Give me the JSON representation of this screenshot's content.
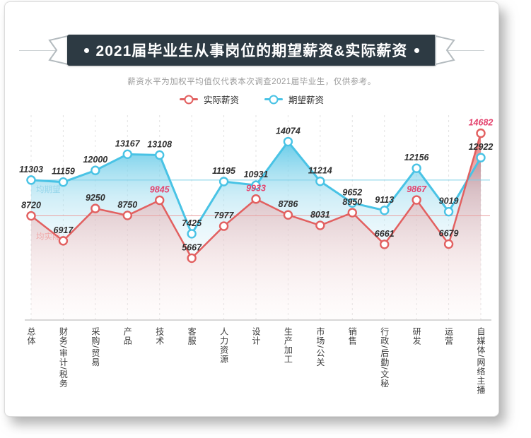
{
  "banner": {
    "title": "2021届毕业生从事岗位的期望薪资&实际薪资"
  },
  "subtitle": "薪资水平为加权平均值仅代表本次调查2021届毕业生，仅供参考。",
  "legend": [
    {
      "label": "实际薪资",
      "color": "#e26060"
    },
    {
      "label": "期望薪资",
      "color": "#49c3e5"
    }
  ],
  "theme": {
    "banner_bg": "#2d3a43",
    "highlight": "#e4436e",
    "grid_color": "#e3e3e3",
    "axis_color": "#c9c9c9"
  },
  "chart_data": {
    "type": "line",
    "title": "2021届毕业生从事岗位的期望薪资&实际薪资",
    "subtitle": "薪资水平为加权平均值仅代表本次调查2021届毕业生，仅供参考。",
    "categories": [
      "总体",
      "财务/审计/税务",
      "采购/贸易",
      "产品",
      "技术",
      "客服",
      "人力资源",
      "设计",
      "生产加工",
      "市场/公关",
      "销售",
      "行政/后勤/文秘",
      "研发",
      "运营",
      "自媒体/网络主播"
    ],
    "series": [
      {
        "name": "实际薪资",
        "color": "#e26060",
        "values": [
          8720,
          6917,
          9250,
          8750,
          9845,
          5667,
          7977,
          9933,
          8786,
          8031,
          8950,
          6661,
          9867,
          6679,
          14682
        ],
        "highlighted_value_indices": [
          4,
          7,
          12,
          14
        ],
        "highlight_color": "#e4436e"
      },
      {
        "name": "期望薪资",
        "color": "#49c3e5",
        "values": [
          11303,
          11159,
          12000,
          13167,
          13108,
          7425,
          11195,
          10931,
          14074,
          11214,
          9652,
          9113,
          12156,
          9019,
          12922
        ]
      }
    ],
    "reference_lines": [
      {
        "label": "均期望",
        "value": 11303,
        "line_color": "#7fd0e8",
        "label_color": "#96d6ea"
      },
      {
        "label": "均实际",
        "value": 8720,
        "line_color": "#eaa0a0",
        "label_color": "#f0a8a8"
      }
    ],
    "ylim": [
      1200,
      16600
    ],
    "grid": "vertical-dashed",
    "legend_position": "top",
    "value_label_color": "#2f2f2f"
  }
}
